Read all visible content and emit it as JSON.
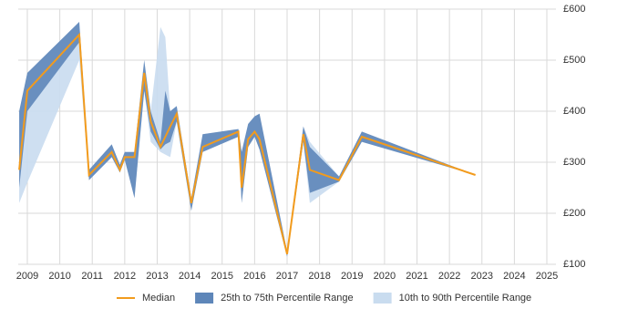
{
  "chart_data": {
    "type": "percentile-line",
    "x": [
      2008.75,
      2009.0,
      2010.6,
      2010.9,
      2011.6,
      2011.85,
      2012.0,
      2012.3,
      2012.6,
      2012.8,
      2013.1,
      2013.25,
      2013.4,
      2013.6,
      2014.05,
      2014.4,
      2015.5,
      2015.6,
      2015.8,
      2016.0,
      2016.15,
      2017.0,
      2017.5,
      2017.7,
      2018.6,
      2019.3,
      2022.8
    ],
    "series": [
      {
        "name": "Median",
        "color": "#f29b1d",
        "values": [
          285,
          440,
          550,
          275,
          320,
          285,
          310,
          310,
          475,
          380,
          330,
          350,
          370,
          395,
          220,
          330,
          360,
          250,
          345,
          360,
          345,
          120,
          355,
          285,
          265,
          350,
          275
        ]
      }
    ],
    "bands": [
      {
        "name": "10th to 90th Percentile Range",
        "color": "#c9dcef",
        "lower": [
          220,
          260,
          500,
          265,
          310,
          280,
          305,
          230,
          440,
          340,
          320,
          315,
          310,
          380,
          205,
          320,
          350,
          220,
          330,
          350,
          325,
          115,
          340,
          220,
          262,
          340,
          275
        ],
        "upper": [
          400,
          475,
          575,
          285,
          335,
          295,
          320,
          320,
          500,
          400,
          565,
          545,
          400,
          410,
          230,
          355,
          365,
          320,
          375,
          390,
          395,
          125,
          370,
          340,
          272,
          360,
          275
        ]
      },
      {
        "name": "25th to 75th Percentile Range",
        "color": "#5e86b9",
        "lower": [
          250,
          400,
          535,
          265,
          310,
          280,
          305,
          230,
          440,
          360,
          325,
          335,
          340,
          380,
          205,
          320,
          350,
          220,
          330,
          350,
          325,
          115,
          340,
          240,
          262,
          340,
          275
        ],
        "upper": [
          400,
          475,
          575,
          285,
          335,
          295,
          320,
          320,
          500,
          400,
          340,
          440,
          400,
          410,
          230,
          355,
          365,
          320,
          375,
          390,
          395,
          125,
          370,
          330,
          272,
          360,
          275
        ]
      }
    ],
    "xlim": [
      2008.72,
      2025.28
    ],
    "xticks": [
      2009,
      2010,
      2011,
      2012,
      2013,
      2014,
      2015,
      2016,
      2017,
      2018,
      2019,
      2020,
      2021,
      2022,
      2023,
      2024,
      2025
    ],
    "ylim": [
      100,
      600
    ],
    "yticks": [
      {
        "value": 100,
        "label": "£100"
      },
      {
        "value": 200,
        "label": "£200"
      },
      {
        "value": 300,
        "label": "£300"
      },
      {
        "value": 400,
        "label": "£400"
      },
      {
        "value": 500,
        "label": "£500"
      },
      {
        "value": 600,
        "label": "£600"
      }
    ],
    "grid": true,
    "legend": "bottom"
  }
}
